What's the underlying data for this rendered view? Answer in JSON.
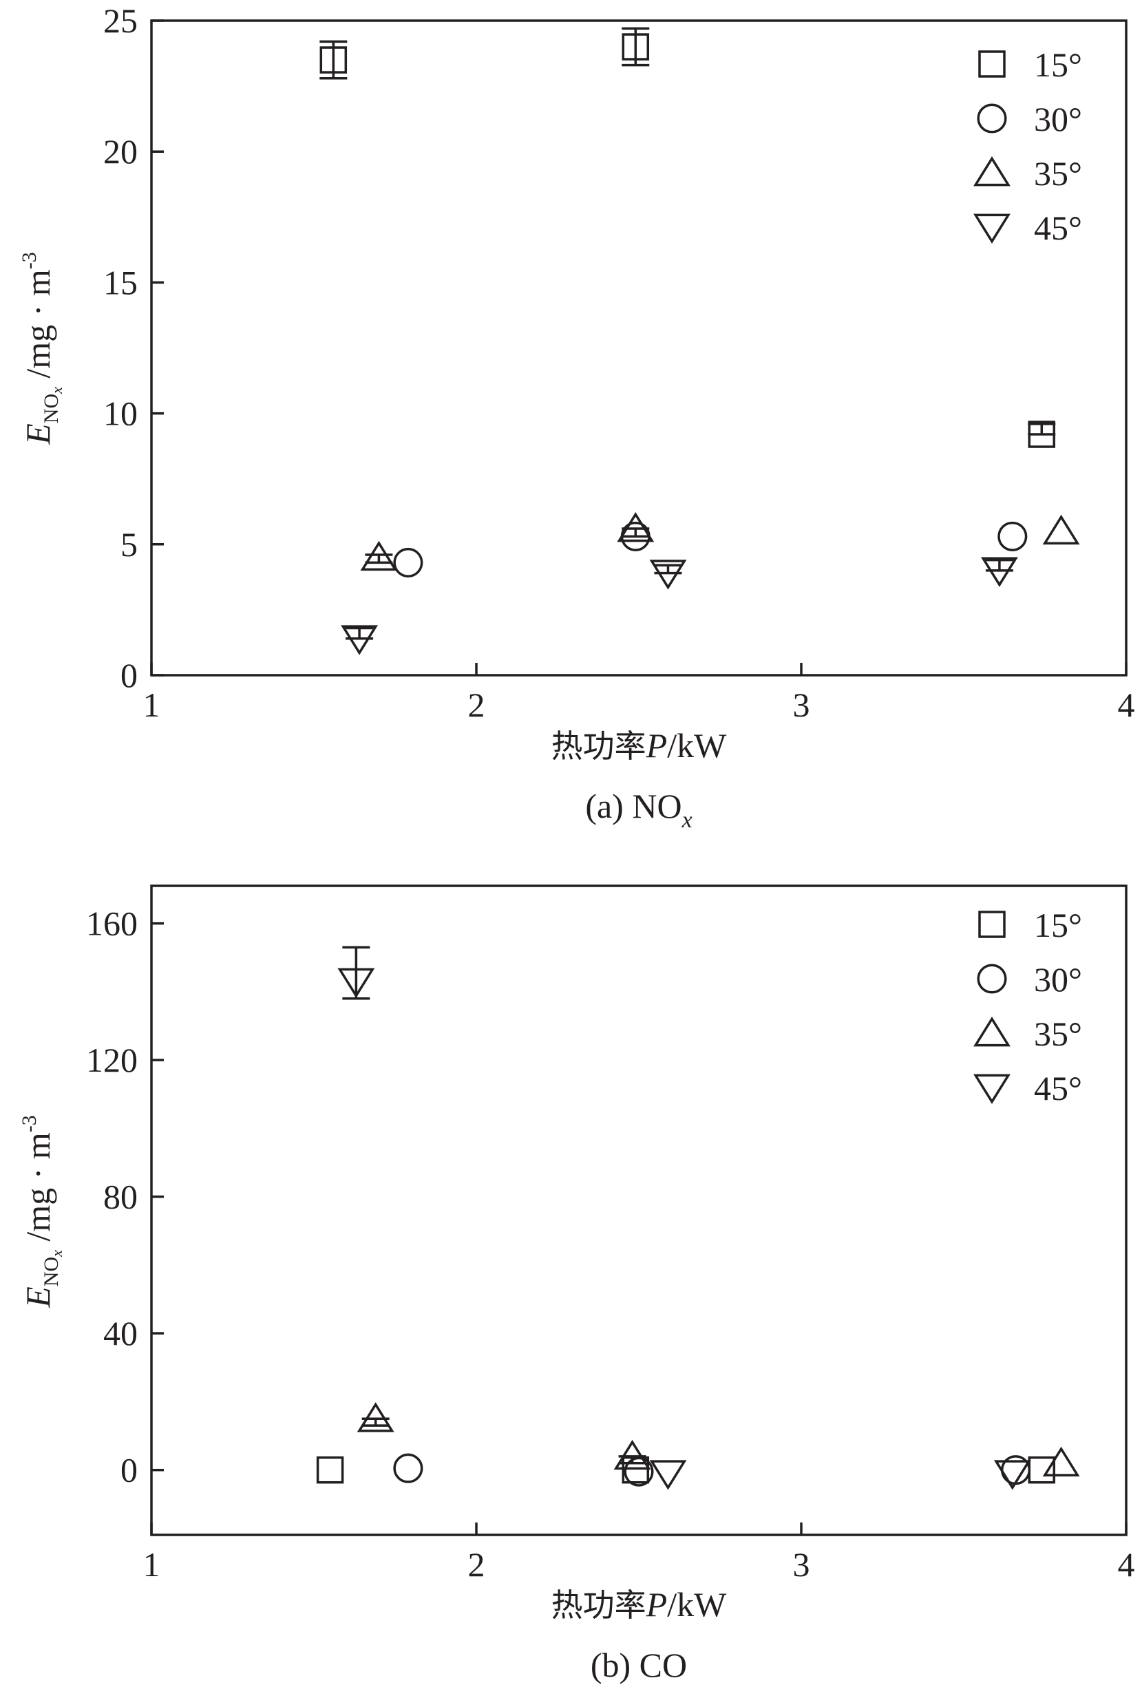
{
  "chart_data": [
    {
      "type": "scatter",
      "xlabel": "热功率P/kW",
      "ylabel": "E_NOx /mg · m⁻³",
      "ylabel_parts": {
        "main": "E",
        "sub": "NO",
        "subsub": "x",
        "unit": "/mg · m",
        "sup": "-3"
      },
      "xlabel_parts": {
        "prefix": "热功率",
        "var": "P",
        "unit": "/kW"
      },
      "caption": "(a) NOx",
      "caption_parts": {
        "prefix": "(a) NO",
        "sub": "x"
      },
      "xlim": [
        1,
        4
      ],
      "ylim": [
        0,
        25
      ],
      "xticks": [
        "1",
        "2",
        "3",
        "4"
      ],
      "xtick_values": [
        1,
        2,
        3,
        4
      ],
      "yticks": [
        "0",
        "5",
        "10",
        "15",
        "20",
        "25"
      ],
      "ytick_values": [
        0,
        5,
        10,
        15,
        20,
        25
      ],
      "legend_position": "top-right",
      "series": [
        {
          "name": "15°",
          "marker": "square",
          "points": [
            {
              "x": 1.56,
              "y": 23.5,
              "err_low": 22.8,
              "err_high": 24.2
            },
            {
              "x": 2.49,
              "y": 24.0,
              "err_low": 23.3,
              "err_high": 24.7
            },
            {
              "x": 3.74,
              "y": 9.2,
              "err_low": 9.2,
              "err_high": 9.6
            }
          ]
        },
        {
          "name": "30°",
          "marker": "circle",
          "points": [
            {
              "x": 1.79,
              "y": 4.3,
              "err_low": 4.3,
              "err_high": 4.3
            },
            {
              "x": 2.49,
              "y": 5.3,
              "err_low": 5.3,
              "err_high": 5.3
            },
            {
              "x": 3.65,
              "y": 5.3,
              "err_low": 5.3,
              "err_high": 5.3
            }
          ]
        },
        {
          "name": "35°",
          "marker": "triangle-up",
          "points": [
            {
              "x": 1.7,
              "y": 4.5,
              "err_low": 4.3,
              "err_high": 4.6
            },
            {
              "x": 2.49,
              "y": 5.6,
              "err_low": 5.3,
              "err_high": 5.6
            },
            {
              "x": 3.8,
              "y": 5.5,
              "err_low": 5.5,
              "err_high": 5.5
            }
          ]
        },
        {
          "name": "45°",
          "marker": "triangle-down",
          "points": [
            {
              "x": 1.64,
              "y": 1.4,
              "err_low": 1.4,
              "err_high": 1.8
            },
            {
              "x": 2.59,
              "y": 3.9,
              "err_low": 3.9,
              "err_high": 4.2
            },
            {
              "x": 3.61,
              "y": 4.0,
              "err_low": 4.0,
              "err_high": 4.4
            }
          ]
        }
      ]
    },
    {
      "type": "scatter",
      "xlabel": "热功率P/kW",
      "ylabel": "E_NOx /mg · m⁻³",
      "ylabel_parts": {
        "main": "E",
        "sub": "NO",
        "subsub": "x",
        "unit": "/mg · m",
        "sup": "-3"
      },
      "xlabel_parts": {
        "prefix": "热功率",
        "var": "P",
        "unit": "/kW"
      },
      "caption": "(b) CO",
      "caption_parts": {
        "prefix": "(b) CO",
        "sub": ""
      },
      "xlim": [
        1,
        4
      ],
      "ylim": [
        -19,
        171
      ],
      "xticks": [
        "1",
        "2",
        "3",
        "4"
      ],
      "xtick_values": [
        1,
        2,
        3,
        4
      ],
      "yticks": [
        "0",
        "40",
        "80",
        "120",
        "160"
      ],
      "ytick_values": [
        0,
        40,
        80,
        120,
        160
      ],
      "legend_position": "top-right",
      "series": [
        {
          "name": "15°",
          "marker": "square",
          "points": [
            {
              "x": 1.55,
              "y": 0,
              "err_low": 0,
              "err_high": 0
            },
            {
              "x": 2.49,
              "y": 0,
              "err_low": 0,
              "err_high": 0
            },
            {
              "x": 3.74,
              "y": 0,
              "err_low": 0,
              "err_high": 0
            }
          ]
        },
        {
          "name": "30°",
          "marker": "circle",
          "points": [
            {
              "x": 1.79,
              "y": 0.5,
              "err_low": 0.5,
              "err_high": 0.5
            },
            {
              "x": 2.5,
              "y": -0.5,
              "err_low": -0.5,
              "err_high": -0.5
            },
            {
              "x": 3.66,
              "y": 0,
              "err_low": 0,
              "err_high": 0
            }
          ]
        },
        {
          "name": "35°",
          "marker": "triangle-up",
          "points": [
            {
              "x": 1.69,
              "y": 15,
              "err_low": 13,
              "err_high": 15
            },
            {
              "x": 2.48,
              "y": 4,
              "err_low": 2,
              "err_high": 4
            },
            {
              "x": 3.8,
              "y": 2,
              "err_low": 2,
              "err_high": 2
            }
          ]
        },
        {
          "name": "45°",
          "marker": "triangle-down",
          "points": [
            {
              "x": 1.63,
              "y": 143,
              "err_low": 138,
              "err_high": 153
            },
            {
              "x": 2.59,
              "y": -1,
              "err_low": -1,
              "err_high": -1
            },
            {
              "x": 3.65,
              "y": -1,
              "err_low": -1,
              "err_high": -1
            }
          ]
        }
      ]
    }
  ]
}
